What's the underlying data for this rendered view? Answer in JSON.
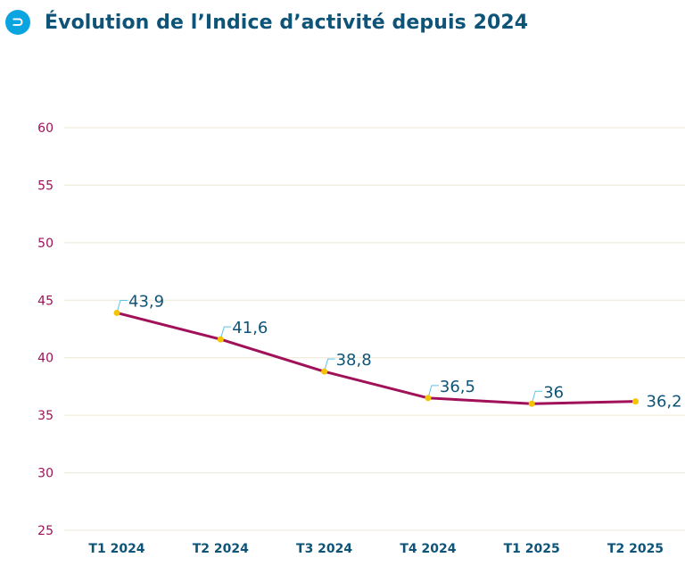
{
  "header": {
    "icon": "circle-arrow-icon",
    "title": "Évolution de l’Indice d’activité depuis 2024"
  },
  "colors": {
    "title": "#0e5478",
    "line": "#a0115a",
    "marker": "#f5c400",
    "ytick": "#a0115a",
    "gridline": "#ece7d4",
    "connector": "#5ec3e8",
    "logo": "#0aa5e0"
  },
  "chart_data": {
    "type": "line",
    "title": "Évolution de l’Indice d’activité depuis 2024",
    "categories": [
      "T1 2024",
      "T2 2024",
      "T3 2024",
      "T4 2024",
      "T1 2025",
      "T2 2025"
    ],
    "series": [
      {
        "values": [
          43.9,
          41.6,
          38.8,
          36.5,
          36,
          36.2
        ],
        "labels": [
          "43,9",
          "41,6",
          "38,8",
          "36,5",
          "36",
          "36,2"
        ]
      }
    ],
    "yticks": [
      25,
      30,
      35,
      40,
      45,
      50,
      55,
      60
    ],
    "ytick_labels": [
      "25",
      "30",
      "35",
      "40",
      "45",
      "50",
      "55",
      "60"
    ],
    "ylim": [
      25,
      60
    ],
    "xlabel": "",
    "ylabel": "",
    "grid": true,
    "legend": "none"
  }
}
